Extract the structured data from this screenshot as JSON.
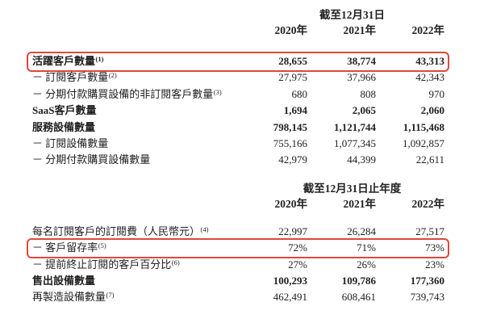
{
  "document": {
    "language": "zh-Hant",
    "background_color": "#ffffff",
    "text_color": "#212121",
    "highlight_box_color": "#dc4a3c"
  },
  "sections": [
    {
      "header": "截至12月31日",
      "years": [
        "2020年",
        "2021年",
        "2022年"
      ],
      "rows": [
        {
          "label": "活躍客戶數量",
          "sup": "(1)",
          "values": [
            "28,655",
            "38,774",
            "43,313"
          ],
          "bold": true,
          "boxed": true
        },
        {
          "label": "－ 訂閱客戶數量",
          "sup": "(2)",
          "values": [
            "27,975",
            "37,966",
            "42,343"
          ],
          "bold": false,
          "boxed": false
        },
        {
          "label": "－ 分期付款購買設備的非訂閱客戶數量",
          "sup": "(3)",
          "values": [
            "680",
            "808",
            "970"
          ],
          "bold": false,
          "boxed": false
        },
        {
          "label": "SaaS客戶數量",
          "sup": "",
          "values": [
            "1,694",
            "2,065",
            "2,060"
          ],
          "bold": true,
          "boxed": false
        },
        {
          "label": "服務設備數量",
          "sup": "",
          "values": [
            "798,145",
            "1,121,744",
            "1,115,468"
          ],
          "bold": true,
          "boxed": false
        },
        {
          "label": "－ 訂閱設備數量",
          "sup": "",
          "values": [
            "755,166",
            "1,077,345",
            "1,092,857"
          ],
          "bold": false,
          "boxed": false
        },
        {
          "label": "－ 分期付款購買設備數量",
          "sup": "",
          "values": [
            "42,979",
            "44,399",
            "22,611"
          ],
          "bold": false,
          "boxed": false
        }
      ]
    },
    {
      "header": "截至12月31日止年度",
      "years": [
        "2020年",
        "2021年",
        "2022年"
      ],
      "rows": [
        {
          "label": "每名訂閱客戶的訂閱費（人民幣元）",
          "sup": "(4)",
          "values": [
            "22,997",
            "26,284",
            "27,517"
          ],
          "bold": false,
          "boxed": false
        },
        {
          "label": "－ 客戶留存率",
          "sup": "(5)",
          "values": [
            "72%",
            "71%",
            "73%"
          ],
          "bold": false,
          "boxed": true
        },
        {
          "label": "－ 提前終止訂閱的客戶百分比",
          "sup": "(6)",
          "values": [
            "27%",
            "26%",
            "23%"
          ],
          "bold": false,
          "boxed": false
        },
        {
          "label": "售出設備數量",
          "sup": "",
          "values": [
            "100,293",
            "109,786",
            "177,360"
          ],
          "bold": true,
          "boxed": false
        },
        {
          "label": "再製造設備數量",
          "sup": "(7)",
          "values": [
            "462,491",
            "608,461",
            "739,743"
          ],
          "bold": false,
          "boxed": false
        }
      ]
    }
  ]
}
